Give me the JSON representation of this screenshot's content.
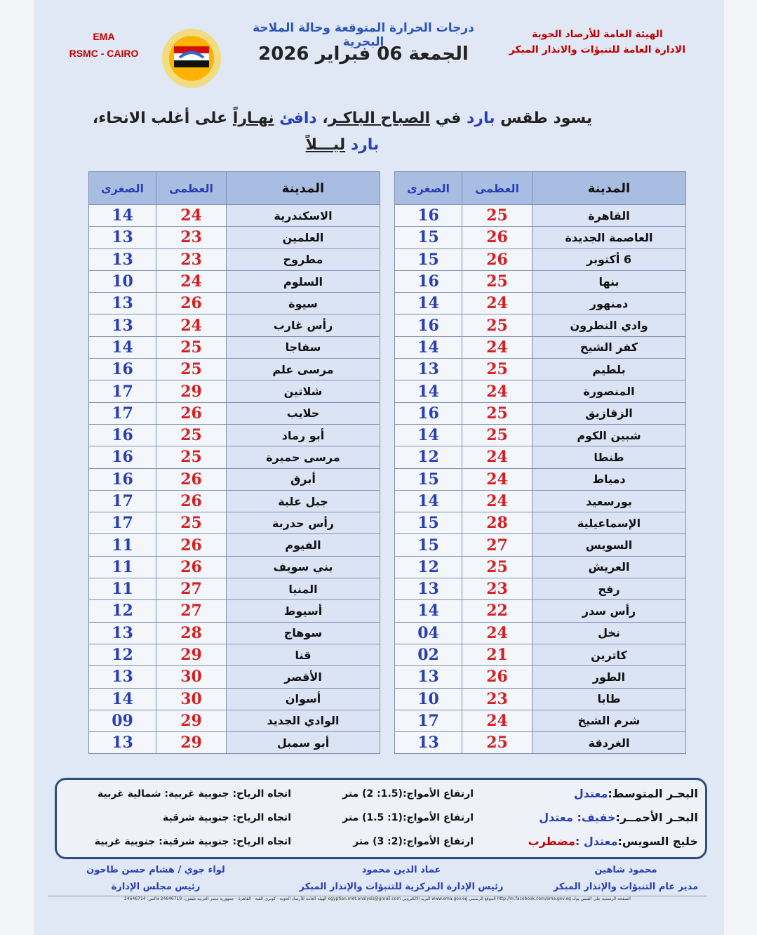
{
  "header": {
    "org": [
      "الهيئة العامة للأرصاد الجوية",
      "الادارة العامة للتنبؤات والانذار المبكر"
    ],
    "ema": "EMA",
    "rsmc": "RSMC - CAIRO",
    "title": "درجات الحرارة المتوقعة وحالة الملاحة البحرية",
    "date": "الجمعة 06 فبراير 2026"
  },
  "summary": {
    "line1": [
      "يسود طقس ",
      "بارد",
      " في ",
      "الصباح الباكـر",
      "، ",
      "دافئ",
      " ",
      "نهـاراً",
      " على أغلب الانحاء،"
    ],
    "line2": [
      "بارد",
      " ",
      "ليـــلاً"
    ]
  },
  "tables": [
    {
      "headers": [
        "المدينة",
        "العظمى",
        "الصغرى"
      ],
      "rows": [
        [
          "القاهرة",
          "25",
          "16"
        ],
        [
          "العاصمة الجديدة",
          "26",
          "15"
        ],
        [
          "6 أكتوبر",
          "26",
          "15"
        ],
        [
          "بنها",
          "25",
          "16"
        ],
        [
          "دمنهور",
          "24",
          "14"
        ],
        [
          "وادي النطرون",
          "25",
          "16"
        ],
        [
          "كفر الشيخ",
          "24",
          "14"
        ],
        [
          "بلطيم",
          "25",
          "13"
        ],
        [
          "المنصورة",
          "24",
          "14"
        ],
        [
          "الزقازيق",
          "25",
          "16"
        ],
        [
          "شبين الكوم",
          "25",
          "14"
        ],
        [
          "طنطا",
          "24",
          "12"
        ],
        [
          "دمياط",
          "24",
          "15"
        ],
        [
          "بورسعيد",
          "24",
          "14"
        ],
        [
          "الإسماعيلية",
          "28",
          "15"
        ],
        [
          "السويس",
          "27",
          "15"
        ],
        [
          "العريش",
          "25",
          "12"
        ],
        [
          "رفح",
          "23",
          "13"
        ],
        [
          "رأس سدر",
          "22",
          "14"
        ],
        [
          "نخل",
          "24",
          "04"
        ],
        [
          "كاترين",
          "21",
          "02"
        ],
        [
          "الطور",
          "26",
          "13"
        ],
        [
          "طابا",
          "23",
          "10"
        ],
        [
          "شرم الشيخ",
          "24",
          "17"
        ],
        [
          "الغردقة",
          "25",
          "13"
        ]
      ]
    },
    {
      "headers": [
        "المدينة",
        "العظمى",
        "الصغرى"
      ],
      "rows": [
        [
          "الاسكندرية",
          "24",
          "14"
        ],
        [
          "العلمين",
          "23",
          "13"
        ],
        [
          "مطروح",
          "23",
          "13"
        ],
        [
          "السلوم",
          "24",
          "10"
        ],
        [
          "سيوة",
          "26",
          "13"
        ],
        [
          "رأس غارب",
          "24",
          "13"
        ],
        [
          "سفاجا",
          "25",
          "14"
        ],
        [
          "مرسى علم",
          "25",
          "16"
        ],
        [
          "شلاتين",
          "29",
          "17"
        ],
        [
          "حلايب",
          "26",
          "17"
        ],
        [
          "أبو رماد",
          "25",
          "16"
        ],
        [
          "مرسى حميرة",
          "25",
          "16"
        ],
        [
          "أبرق",
          "26",
          "16"
        ],
        [
          "جبل علبة",
          "26",
          "17"
        ],
        [
          "رأس حدربة",
          "25",
          "17"
        ],
        [
          "الفيوم",
          "26",
          "11"
        ],
        [
          "بني سويف",
          "26",
          "11"
        ],
        [
          "المنيا",
          "27",
          "11"
        ],
        [
          "أسيوط",
          "27",
          "12"
        ],
        [
          "سوهاج",
          "28",
          "13"
        ],
        [
          "قنا",
          "29",
          "12"
        ],
        [
          "الأقصر",
          "30",
          "13"
        ],
        [
          "أسوان",
          "30",
          "14"
        ],
        [
          "الوادي الجديد",
          "29",
          "09"
        ],
        [
          "أبو سمبل",
          "29",
          "13"
        ]
      ]
    }
  ],
  "marine": [
    {
      "sea": "البحـر المتوسط:",
      "state": [
        "معتدل"
      ],
      "waves": "ارتفاع الأمواج:(1.5: 2) متر",
      "wind": "اتجاه الرياح: جنوبية غربية: شمالية غربية"
    },
    {
      "sea": "البحـر الأحمــر:",
      "state": [
        "خفيف: معتدل"
      ],
      "waves": "ارتفاع الأمواج:(1: 1.5) متر",
      "wind": "اتجاه الرياح: جنوبية شرقية"
    },
    {
      "sea": "خليج السويس:",
      "state": [
        "معتدل :",
        "مضطرب"
      ],
      "waves": "ارتفاع الأمواج:(2: 3) متر",
      "wind": "اتجاه الرياح: جنوبية شرقية: جنوبية غربية"
    }
  ],
  "signatures": [
    {
      "name": "محمود شاهين",
      "role": "مدير عام التنبؤات والإنذار المبكر"
    },
    {
      "name": "عماد الدين محمود",
      "role": "رئيس الإدارة المركزية للتنبؤات والإنذار المبكر"
    },
    {
      "name": "لواء جوي / هشام حسن طاحون",
      "role": "رئيس مجلس الإدارة"
    }
  ],
  "footer": "الصفحة الرسمية على الفيس بوك http://m.facebook.com/ema.gov.eg  الموقع الرسمي www.ema.gov.eg  البريد الالكتروني egyptian.met.analysis@gmail.com  الهيئة العامة للأرصاد الجوية - كوبري القبة - القاهرة - جمهورية مصر العربية تليفون: 24646719 فاكس: 24646714"
}
